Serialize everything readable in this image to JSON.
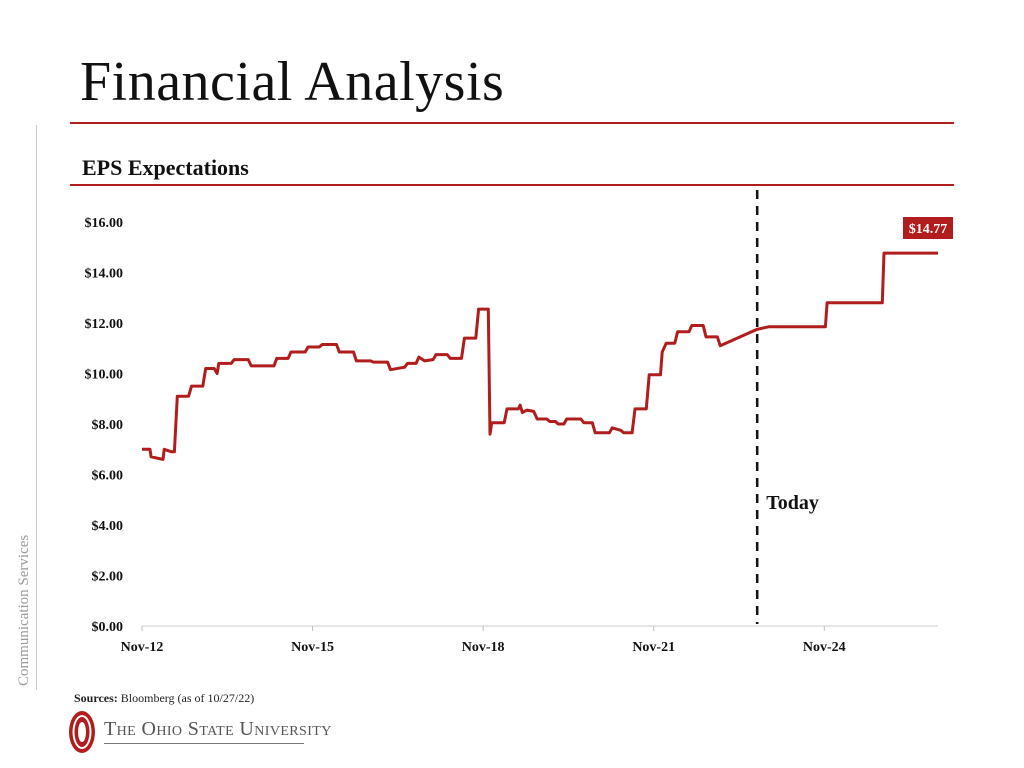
{
  "slide": {
    "title": "Financial Analysis",
    "side_label": "Communication Services",
    "sources_label": "Sources:",
    "sources_text": "Bloomberg (as of 10/27/22)",
    "logo_text": "The Ohio State University",
    "accent_color": "#b11c1c"
  },
  "chart_data": {
    "type": "line",
    "title": "EPS Expectations",
    "xlabel": "",
    "ylabel": "",
    "ylim": [
      0,
      16
    ],
    "y_ticks": [
      "$0.00",
      "$2.00",
      "$4.00",
      "$6.00",
      "$8.00",
      "$10.00",
      "$12.00",
      "$14.00",
      "$16.00"
    ],
    "x_ticks": [
      "Nov-12",
      "Nov-15",
      "Nov-18",
      "Nov-21",
      "Nov-24"
    ],
    "x_tick_years": [
      2012.83,
      2015.83,
      2018.83,
      2021.83,
      2024.83
    ],
    "xlim": [
      2012.83,
      2026.83
    ],
    "grid": false,
    "series": [
      {
        "color": "#b11c1c",
        "points": [
          [
            2012.83,
            7.0
          ],
          [
            2012.97,
            7.0
          ],
          [
            2012.99,
            6.7
          ],
          [
            2013.2,
            6.6
          ],
          [
            2013.22,
            7.0
          ],
          [
            2013.35,
            6.9
          ],
          [
            2013.4,
            6.9
          ],
          [
            2013.45,
            9.1
          ],
          [
            2013.65,
            9.1
          ],
          [
            2013.7,
            9.5
          ],
          [
            2013.9,
            9.5
          ],
          [
            2013.95,
            10.2
          ],
          [
            2014.1,
            10.2
          ],
          [
            2014.15,
            10.0
          ],
          [
            2014.18,
            10.4
          ],
          [
            2014.4,
            10.4
          ],
          [
            2014.45,
            10.55
          ],
          [
            2014.7,
            10.55
          ],
          [
            2014.75,
            10.3
          ],
          [
            2015.15,
            10.3
          ],
          [
            2015.2,
            10.6
          ],
          [
            2015.4,
            10.6
          ],
          [
            2015.45,
            10.85
          ],
          [
            2015.7,
            10.85
          ],
          [
            2015.75,
            11.05
          ],
          [
            2015.95,
            11.05
          ],
          [
            2016.0,
            11.15
          ],
          [
            2016.25,
            11.15
          ],
          [
            2016.3,
            10.85
          ],
          [
            2016.55,
            10.85
          ],
          [
            2016.6,
            10.5
          ],
          [
            2016.85,
            10.5
          ],
          [
            2016.9,
            10.45
          ],
          [
            2017.15,
            10.45
          ],
          [
            2017.2,
            10.15
          ],
          [
            2017.45,
            10.25
          ],
          [
            2017.5,
            10.4
          ],
          [
            2017.65,
            10.4
          ],
          [
            2017.7,
            10.65
          ],
          [
            2017.8,
            10.5
          ],
          [
            2017.95,
            10.55
          ],
          [
            2018.0,
            10.75
          ],
          [
            2018.2,
            10.75
          ],
          [
            2018.25,
            10.6
          ],
          [
            2018.45,
            10.6
          ],
          [
            2018.5,
            11.4
          ],
          [
            2018.7,
            11.4
          ],
          [
            2018.75,
            12.55
          ],
          [
            2018.92,
            12.55
          ],
          [
            2018.95,
            7.6
          ],
          [
            2018.98,
            8.05
          ],
          [
            2019.2,
            8.05
          ],
          [
            2019.25,
            8.6
          ],
          [
            2019.45,
            8.6
          ],
          [
            2019.48,
            8.75
          ],
          [
            2019.52,
            8.45
          ],
          [
            2019.6,
            8.55
          ],
          [
            2019.72,
            8.5
          ],
          [
            2019.78,
            8.2
          ],
          [
            2019.95,
            8.2
          ],
          [
            2020.0,
            8.1
          ],
          [
            2020.1,
            8.1
          ],
          [
            2020.15,
            8.0
          ],
          [
            2020.25,
            8.0
          ],
          [
            2020.3,
            8.2
          ],
          [
            2020.55,
            8.2
          ],
          [
            2020.6,
            8.05
          ],
          [
            2020.75,
            8.05
          ],
          [
            2020.8,
            7.65
          ],
          [
            2021.05,
            7.65
          ],
          [
            2021.1,
            7.85
          ],
          [
            2021.25,
            7.75
          ],
          [
            2021.3,
            7.65
          ],
          [
            2021.45,
            7.65
          ],
          [
            2021.5,
            8.6
          ],
          [
            2021.7,
            8.6
          ],
          [
            2021.75,
            9.95
          ],
          [
            2021.95,
            9.95
          ],
          [
            2021.98,
            10.85
          ],
          [
            2022.05,
            11.2
          ],
          [
            2022.2,
            11.2
          ],
          [
            2022.25,
            11.65
          ],
          [
            2022.45,
            11.65
          ],
          [
            2022.5,
            11.9
          ],
          [
            2022.7,
            11.9
          ],
          [
            2022.75,
            11.45
          ],
          [
            2022.95,
            11.45
          ],
          [
            2023.0,
            11.1
          ],
          [
            2023.65,
            11.75
          ],
          [
            2023.85,
            11.85
          ],
          [
            2024.85,
            11.85
          ],
          [
            2024.88,
            12.8
          ],
          [
            2025.85,
            12.8
          ],
          [
            2025.88,
            14.77
          ],
          [
            2026.83,
            14.77
          ]
        ]
      }
    ],
    "divider_year": 2023.65,
    "divider_label": "Today",
    "end_value_label": "$14.77"
  }
}
